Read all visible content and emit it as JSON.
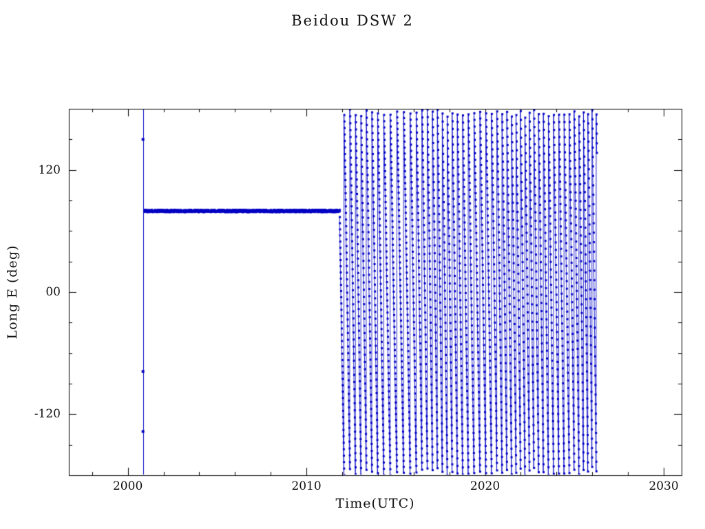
{
  "chart_data": {
    "type": "scatter",
    "title": "Beidou DSW 2",
    "xlabel": "Time(UTC)",
    "ylabel": "Long E (deg)",
    "xlim": [
      1996.7,
      2031.0
    ],
    "ylim": [
      -180,
      180
    ],
    "x_ticks": [
      {
        "value": 2000,
        "label": "2000"
      },
      {
        "value": 2010,
        "label": "2010"
      },
      {
        "value": 2020,
        "label": "2020"
      },
      {
        "value": 2030,
        "label": "2030"
      }
    ],
    "y_ticks": [
      {
        "value": 120,
        "label": "120"
      },
      {
        "value": 0,
        "label": "00"
      },
      {
        "value": -120,
        "label": "-120"
      }
    ],
    "x_minor_step": 2,
    "y_minor_step": 30,
    "grid": false,
    "legend": "none",
    "marker_color": "#0000c4",
    "frame_color": "#000000",
    "background": "#ffffff",
    "segments": {
      "launch_event": {
        "time": 2000.85,
        "vertical_line_full_range": true,
        "outlier_points": [
          [
            2000.85,
            150
          ],
          [
            2000.85,
            -78
          ],
          [
            2000.85,
            -137
          ]
        ]
      },
      "stationkeeping": {
        "start": 2000.9,
        "end": 2011.85,
        "longitude": 80,
        "jitter": 1.2,
        "sample_step": 0.01
      },
      "drift": {
        "start": 2011.85,
        "end": 2026.25,
        "start_longitude": 80,
        "rate_deg_per_year_start": 1000,
        "rate_accel_deg_per_year2": 30,
        "rate_variation_amp": 150,
        "rate_variation_period": 4.5,
        "sample_step": 0.006,
        "wrap_min": -180,
        "wrap_max": 180
      }
    }
  }
}
